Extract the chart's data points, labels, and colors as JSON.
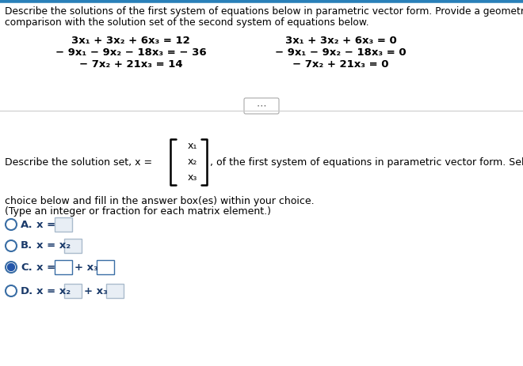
{
  "bg_color": "#ffffff",
  "top_border_color": "#2980b9",
  "text_color": "#000000",
  "dark_blue": "#1a3a6a",
  "header_line1": "Describe the solutions of the first system of equations below in parametric vector form. Provide a geometric",
  "header_line2": "comparison with the solution set of the second system of equations below.",
  "eq_left": [
    "3x₁ + 3x₂ + 6x₃ = 12",
    "− 9x₁ − 9x₂ − 18x₃ = − 36",
    "− 7x₂ + 21x₃ = 14"
  ],
  "eq_right": [
    "3x₁ + 3x₂ + 6x₃ = 0",
    "− 9x₁ − 9x₂ − 18x₃ = 0",
    "− 7x₂ + 21x₃ = 0"
  ],
  "desc_text": "Describe the solution set, x = ",
  "vector_entries": [
    "x₁",
    "x₂",
    "x₃"
  ],
  "of_text": ", of the first system of equations in parametric vector form. Select the correct",
  "choice_line1": "choice below and fill in the answer box(es) within your choice.",
  "choice_line2": "(Type an integer or fraction for each matrix element.)",
  "options": [
    {
      "label": "A.",
      "prefix": "x = ",
      "has_box1": true,
      "has_x2_before": false,
      "has_plus_x3": false,
      "has_box2": false,
      "selected": false,
      "box1_filled": false
    },
    {
      "label": "B.",
      "prefix": "x = x₂",
      "has_box1": true,
      "has_x2_before": false,
      "has_plus_x3": false,
      "has_box2": false,
      "selected": false,
      "box1_filled": false
    },
    {
      "label": "C.",
      "prefix": "x = ",
      "has_box1": true,
      "has_x2_before": false,
      "has_plus_x3": true,
      "has_box2": true,
      "selected": true,
      "box1_filled": false
    },
    {
      "label": "D.",
      "prefix": "x = x₂",
      "has_box1": true,
      "has_x2_before": false,
      "has_plus_x3": true,
      "has_box2": true,
      "selected": false,
      "box1_filled": false
    }
  ],
  "figw": 6.6,
  "figh": 4.63,
  "dpi": 100
}
